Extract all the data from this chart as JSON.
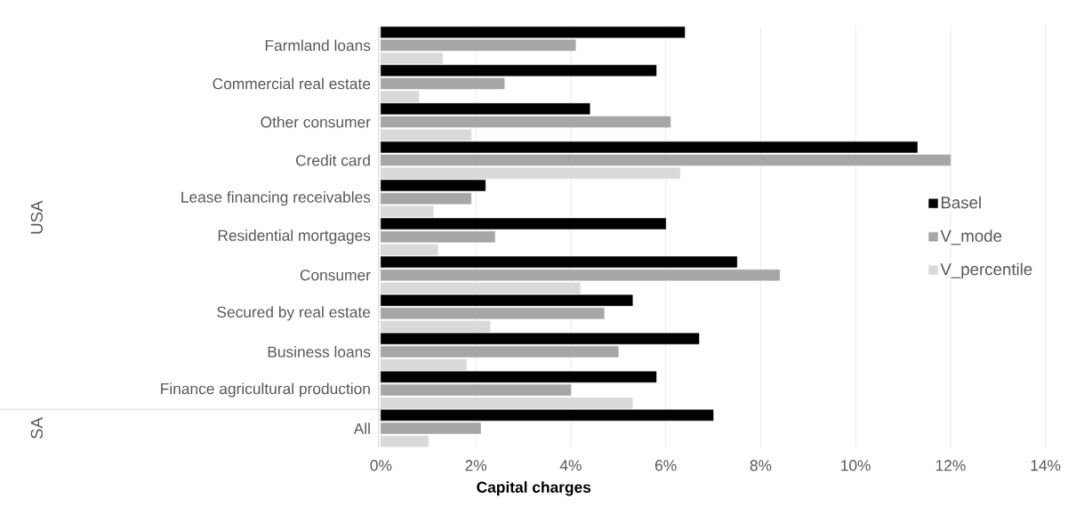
{
  "chart_data": {
    "type": "bar",
    "orientation": "horizontal",
    "xlabel": "Capital charges",
    "categories": [
      "Farmland loans",
      "Commercial real estate",
      "Other consumer",
      "Credit card",
      "Lease financing receivables",
      "Residential mortgages",
      "Consumer",
      "Secured by real estate",
      "Business loans",
      "Finance agricultural production",
      "All"
    ],
    "series": [
      {
        "name": "Basel",
        "color": "#000000",
        "values": [
          6.4,
          5.8,
          4.4,
          11.3,
          2.2,
          6.0,
          7.5,
          5.3,
          6.7,
          5.8,
          7.0
        ]
      },
      {
        "name": "V_mode",
        "color": "#a6a6a6",
        "values": [
          4.1,
          2.6,
          6.1,
          12.0,
          1.9,
          2.4,
          8.4,
          4.7,
          5.0,
          4.0,
          2.1
        ]
      },
      {
        "name": "V_percentile",
        "color": "#d9d9d9",
        "values": [
          1.3,
          0.8,
          1.9,
          6.3,
          1.1,
          1.2,
          4.2,
          2.3,
          1.8,
          5.3,
          1.0
        ]
      }
    ],
    "xlim": [
      0,
      14
    ],
    "xticks": [
      {
        "value": 0,
        "label": "0%"
      },
      {
        "value": 2,
        "label": "2%"
      },
      {
        "value": 4,
        "label": "4%"
      },
      {
        "value": 6,
        "label": "6%"
      },
      {
        "value": 8,
        "label": "8%"
      },
      {
        "value": 10,
        "label": "10%"
      },
      {
        "value": 12,
        "label": "12%"
      },
      {
        "value": 14,
        "label": "14%"
      }
    ],
    "grid": "x",
    "legend": "right",
    "annotations": [
      "USA",
      "SA"
    ]
  }
}
